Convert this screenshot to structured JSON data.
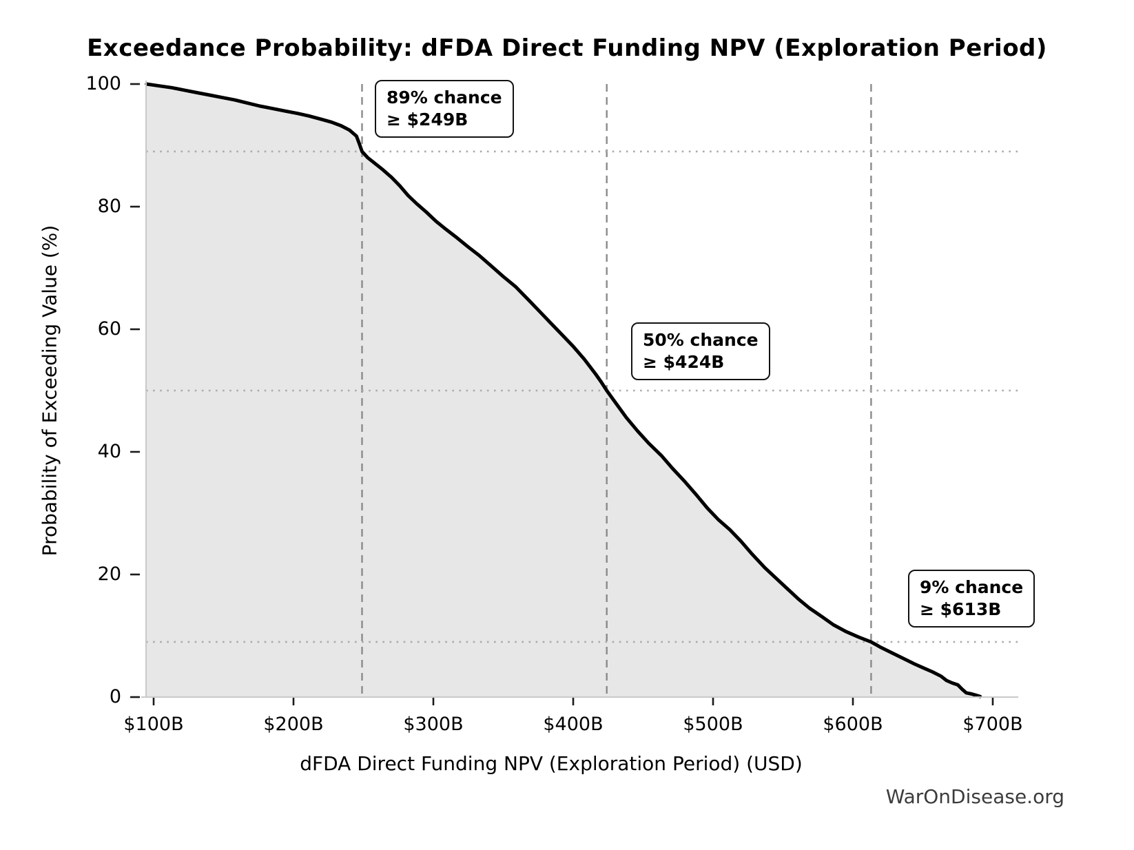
{
  "title": "Exceedance Probability: dFDA Direct Funding NPV (Exploration Period)",
  "watermark": "WarOnDisease.org",
  "chart_data": {
    "type": "area",
    "title": "Exceedance Probability: dFDA Direct Funding NPV (Exploration Period)",
    "xlabel": "dFDA Direct Funding NPV (Exploration Period) (USD)",
    "ylabel": "Probability of Exceeding Value (%)",
    "xlim_billions": [
      91,
      718
    ],
    "ylim": [
      0,
      100
    ],
    "grid": {
      "h_dotted_probs": [
        89,
        50,
        9
      ],
      "v_dashed_values": [
        249,
        424,
        613
      ]
    },
    "x_ticks": [
      {
        "value": 100,
        "label": "$100B"
      },
      {
        "value": 200,
        "label": "$200B"
      },
      {
        "value": 300,
        "label": "$300B"
      },
      {
        "value": 400,
        "label": "$400B"
      },
      {
        "value": 500,
        "label": "$500B"
      },
      {
        "value": 600,
        "label": "$600B"
      },
      {
        "value": 700,
        "label": "$700B"
      }
    ],
    "y_ticks": [
      {
        "value": 0,
        "label": "0"
      },
      {
        "value": 20,
        "label": "20"
      },
      {
        "value": 40,
        "label": "40"
      },
      {
        "value": 60,
        "label": "60"
      },
      {
        "value": 80,
        "label": "80"
      },
      {
        "value": 100,
        "label": "100"
      }
    ],
    "annotations": [
      {
        "prob_pct": 89,
        "value_billions": 249,
        "line1": "89% chance",
        "line2": "≥ $249B"
      },
      {
        "prob_pct": 50,
        "value_billions": 424,
        "line1": "50% chance",
        "line2": "≥ $424B"
      },
      {
        "prob_pct": 9,
        "value_billions": 613,
        "line1": "9% chance",
        "line2": "≥ $613B"
      }
    ],
    "series": [
      {
        "name": "exceedance-curve",
        "points": [
          [
            95,
            100
          ],
          [
            104,
            99.7
          ],
          [
            113,
            99.4
          ],
          [
            122,
            99.0
          ],
          [
            131,
            98.6
          ],
          [
            140,
            98.2
          ],
          [
            149,
            97.8
          ],
          [
            158,
            97.4
          ],
          [
            167,
            96.9
          ],
          [
            176,
            96.4
          ],
          [
            185,
            96.0
          ],
          [
            194,
            95.6
          ],
          [
            203,
            95.2
          ],
          [
            211,
            94.8
          ],
          [
            219,
            94.3
          ],
          [
            227,
            93.8
          ],
          [
            234,
            93.2
          ],
          [
            240,
            92.5
          ],
          [
            245,
            91.5
          ],
          [
            247,
            90.3
          ],
          [
            249,
            89.0
          ],
          [
            253,
            88.0
          ],
          [
            258,
            87.1
          ],
          [
            264,
            86.0
          ],
          [
            270,
            84.8
          ],
          [
            276,
            83.4
          ],
          [
            282,
            81.8
          ],
          [
            288,
            80.5
          ],
          [
            295,
            79.1
          ],
          [
            302,
            77.6
          ],
          [
            309,
            76.3
          ],
          [
            317,
            74.9
          ],
          [
            325,
            73.4
          ],
          [
            333,
            72.0
          ],
          [
            341,
            70.4
          ],
          [
            350,
            68.6
          ],
          [
            359,
            66.9
          ],
          [
            368,
            64.8
          ],
          [
            376,
            62.9
          ],
          [
            384,
            61.0
          ],
          [
            392,
            59.1
          ],
          [
            400,
            57.2
          ],
          [
            408,
            55.1
          ],
          [
            416,
            52.7
          ],
          [
            420,
            51.4
          ],
          [
            424,
            50.0
          ],
          [
            431,
            47.8
          ],
          [
            438,
            45.6
          ],
          [
            446,
            43.4
          ],
          [
            454,
            41.4
          ],
          [
            463,
            39.4
          ],
          [
            471,
            37.3
          ],
          [
            480,
            35.1
          ],
          [
            488,
            33.0
          ],
          [
            496,
            30.8
          ],
          [
            504,
            28.9
          ],
          [
            512,
            27.3
          ],
          [
            520,
            25.4
          ],
          [
            528,
            23.3
          ],
          [
            537,
            21.1
          ],
          [
            545,
            19.4
          ],
          [
            553,
            17.7
          ],
          [
            561,
            16.0
          ],
          [
            569,
            14.5
          ],
          [
            578,
            13.1
          ],
          [
            586,
            11.8
          ],
          [
            595,
            10.7
          ],
          [
            604,
            9.8
          ],
          [
            613,
            9.0
          ],
          [
            620,
            8.1
          ],
          [
            628,
            7.2
          ],
          [
            636,
            6.3
          ],
          [
            644,
            5.4
          ],
          [
            651,
            4.7
          ],
          [
            657,
            4.1
          ],
          [
            663,
            3.4
          ],
          [
            667,
            2.7
          ],
          [
            671,
            2.3
          ],
          [
            675,
            2.0
          ],
          [
            678,
            1.3
          ],
          [
            681,
            0.7
          ],
          [
            685,
            0.5
          ],
          [
            688,
            0.3
          ],
          [
            691,
            0.1
          ]
        ]
      }
    ],
    "colors": {
      "curve": "#000000",
      "fill": "#e7e7e7",
      "dashed_gridline": "#8a8a8a",
      "dotted_gridline": "#ababab",
      "spine": "#c9c9c9",
      "watermark": "#3c3c3c"
    }
  }
}
